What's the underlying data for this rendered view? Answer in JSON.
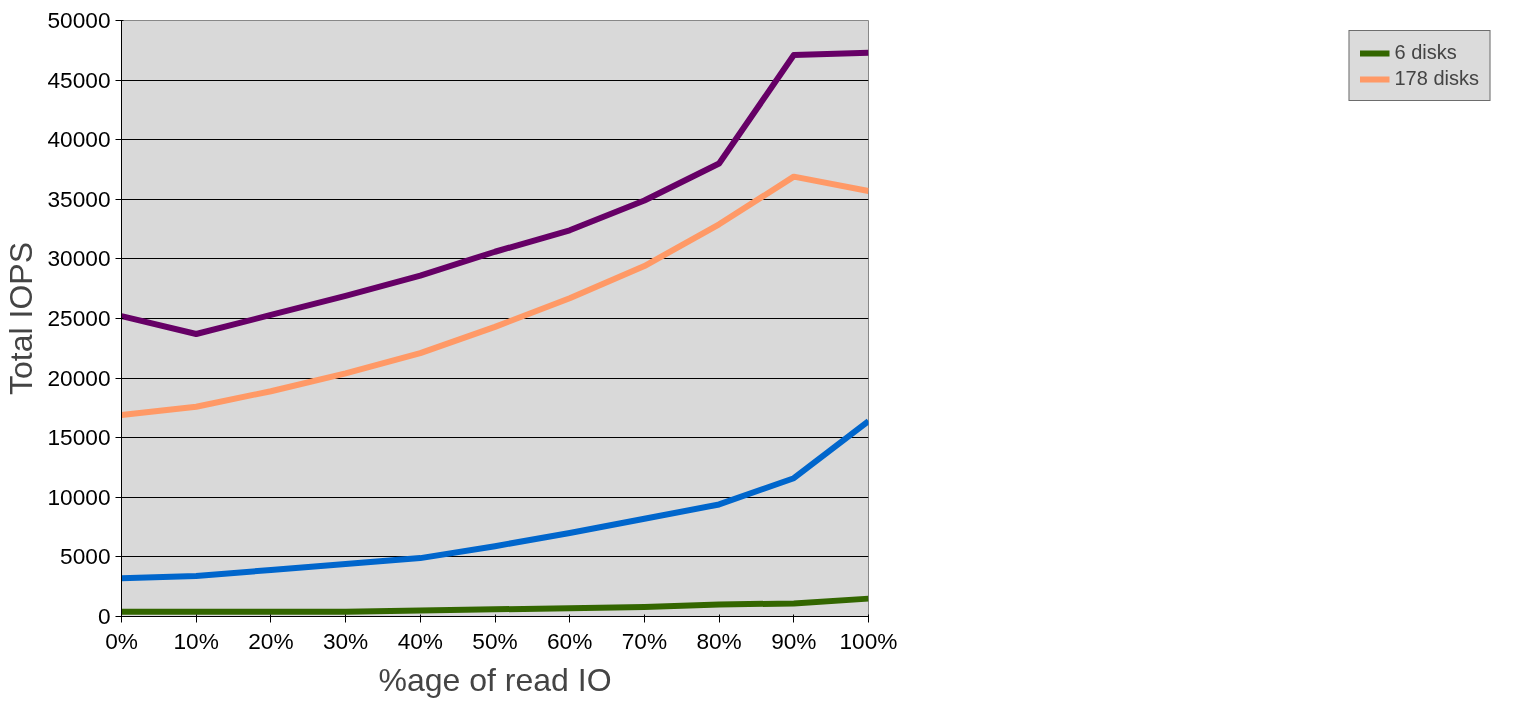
{
  "chart_data": {
    "type": "line",
    "xlabel": "%age of read IO",
    "ylabel": "Total IOPS",
    "categories": [
      "0%",
      "10%",
      "20%",
      "30%",
      "40%",
      "50%",
      "60%",
      "70%",
      "80%",
      "90%",
      "100%"
    ],
    "ylim": [
      0,
      50000
    ],
    "yticks": [
      0,
      5000,
      10000,
      15000,
      20000,
      25000,
      30000,
      35000,
      40000,
      45000,
      50000
    ],
    "grid": "y",
    "legend": "right",
    "marker": "none",
    "line_style": "solid",
    "series": [
      {
        "color": "#660066",
        "values": [
          25200,
          23700,
          25300,
          26900,
          28600,
          30600,
          32400,
          34900,
          38000,
          47100,
          47300
        ]
      },
      {
        "name": "6 disks",
        "color": "#336600",
        "values": [
          400,
          400,
          400,
          400,
          500,
          600,
          700,
          800,
          1000,
          1100,
          1500
        ]
      },
      {
        "name": "178 disks",
        "color": "#ff9966",
        "values": [
          16900,
          17600,
          18900,
          20400,
          22100,
          24300,
          26700,
          29400,
          32900,
          36900,
          35700
        ]
      },
      {
        "color": "#0066cc",
        "values": [
          3200,
          3400,
          3900,
          4400,
          4900,
          5900,
          7000,
          8200,
          9400,
          11600,
          16400
        ]
      }
    ]
  }
}
